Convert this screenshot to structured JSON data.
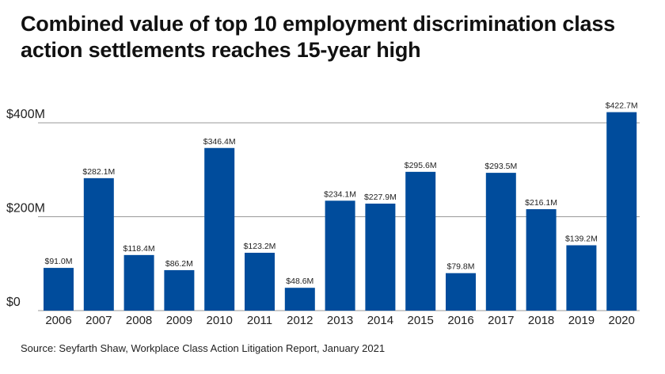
{
  "chart_data": {
    "type": "bar",
    "title": "Combined value of top 10 employment discrimination class action settlements reaches 15-year high",
    "source": "Source: Seyfarth Shaw, Workplace Class Action Litigation Report, January 2021",
    "categories": [
      "2006",
      "2007",
      "2008",
      "2009",
      "2010",
      "2011",
      "2012",
      "2013",
      "2014",
      "2015",
      "2016",
      "2017",
      "2018",
      "2019",
      "2020"
    ],
    "values": [
      91.0,
      282.1,
      118.4,
      86.2,
      346.4,
      123.2,
      48.6,
      234.1,
      227.9,
      295.6,
      79.8,
      293.5,
      216.1,
      139.2,
      422.7
    ],
    "data_labels": [
      "$91.0M",
      "$282.1M",
      "$118.4M",
      "$86.2M",
      "$346.4M",
      "$123.2M",
      "$48.6M",
      "$234.1M",
      "$227.9M",
      "$295.6M",
      "$79.8M",
      "$293.5M",
      "$216.1M",
      "$139.2M",
      "$422.7M"
    ],
    "y_ticks": [
      0,
      200,
      400
    ],
    "y_tick_labels": [
      "$0",
      "$200M",
      "$400M"
    ],
    "ylim": [
      0,
      430
    ],
    "xlabel": "",
    "ylabel": "",
    "grid": true,
    "bar_color": "#004c9c",
    "gridline_color": "#9a9a9a"
  }
}
